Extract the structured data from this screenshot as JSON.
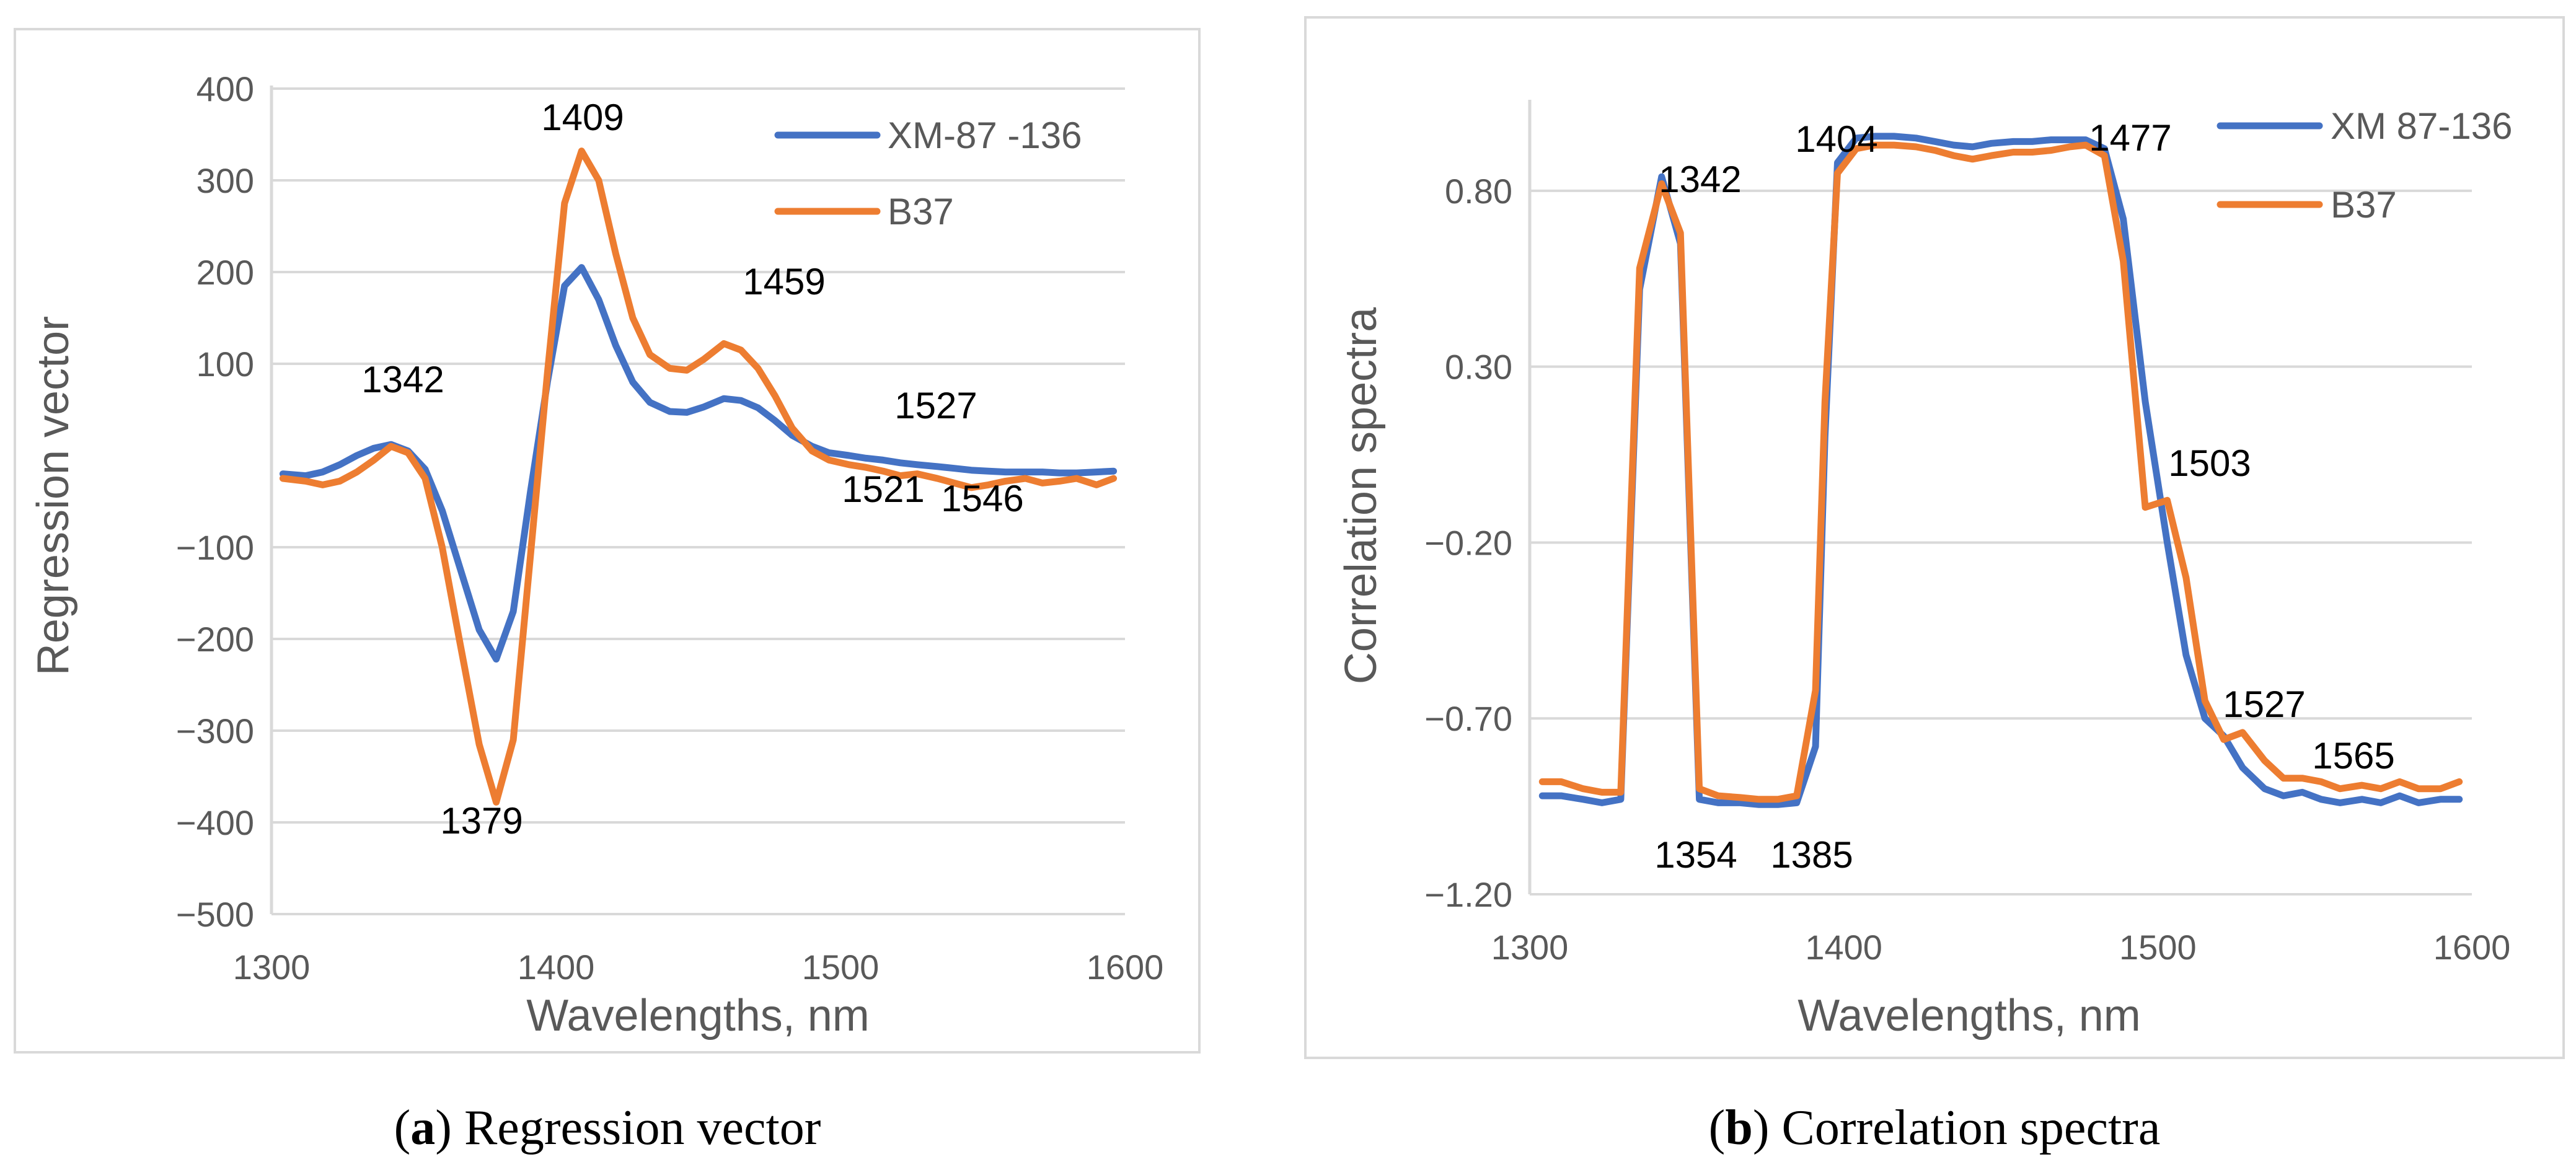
{
  "colors": {
    "series1": "#4472C4",
    "series2": "#ED7D31",
    "grid": "#d9d9d9",
    "text": "#595959"
  },
  "captions": [
    {
      "label": "a",
      "text": "Regression vector"
    },
    {
      "label": "b",
      "text": "Correlation spectra"
    }
  ],
  "chart_data": [
    {
      "type": "line",
      "title": "",
      "xlabel": "Wavelengths, nm",
      "ylabel": "Regression vector",
      "xlim": [
        1300,
        1600
      ],
      "ylim": [
        -500,
        400
      ],
      "x_ticks": [
        1300,
        1400,
        1500,
        1600
      ],
      "y_ticks": [
        400,
        300,
        200,
        100,
        -100,
        -200,
        -300,
        -400,
        -500
      ],
      "y_tick_labels": [
        "400",
        "300",
        "200",
        "100",
        "−100",
        "−200",
        "−300",
        "−400",
        "−500"
      ],
      "grid": true,
      "legend_position": "top-right",
      "x": [
        1304,
        1312,
        1318,
        1324,
        1330,
        1336,
        1342,
        1348,
        1354,
        1360,
        1366,
        1373,
        1379,
        1385,
        1391,
        1397,
        1403,
        1409,
        1415,
        1421,
        1427,
        1433,
        1440,
        1446,
        1452,
        1459,
        1465,
        1471,
        1477,
        1483,
        1490,
        1496,
        1503,
        1509,
        1515,
        1521,
        1527,
        1534,
        1540,
        1546,
        1552,
        1558,
        1565,
        1571,
        1577,
        1583,
        1590,
        1596
      ],
      "series": [
        {
          "name": "XM-87 -136",
          "values": [
            -20,
            -22,
            -18,
            -10,
            0,
            8,
            12,
            5,
            -15,
            -60,
            -120,
            -190,
            -222,
            -170,
            -40,
            80,
            185,
            205,
            170,
            120,
            80,
            58,
            48,
            47,
            53,
            62,
            60,
            52,
            38,
            22,
            10,
            3,
            0,
            -3,
            -5,
            -8,
            -10,
            -12,
            -14,
            -16,
            -17,
            -18,
            -18,
            -18,
            -19,
            -19,
            -18,
            -17
          ]
        },
        {
          "name": "B37",
          "values": [
            -25,
            -28,
            -32,
            -28,
            -18,
            -5,
            10,
            3,
            -25,
            -100,
            -200,
            -315,
            -378,
            -310,
            -110,
            90,
            275,
            332,
            300,
            220,
            150,
            110,
            95,
            93,
            105,
            122,
            115,
            95,
            65,
            30,
            5,
            -5,
            -10,
            -13,
            -17,
            -22,
            -20,
            -25,
            -30,
            -35,
            -32,
            -28,
            -25,
            -30,
            -28,
            -25,
            -32,
            -25
          ]
        }
      ],
      "annotations": [
        {
          "text": "1409"
        },
        {
          "text": "1342"
        },
        {
          "text": "1459"
        },
        {
          "text": "1527"
        },
        {
          "text": "1521"
        },
        {
          "text": "1546"
        },
        {
          "text": "1379"
        }
      ]
    },
    {
      "type": "line",
      "title": "",
      "xlabel": "Wavelengths, nm",
      "ylabel": "Correlation spectra",
      "xlim": [
        1300,
        1600
      ],
      "ylim": [
        -1.2,
        1.05
      ],
      "x_ticks": [
        1300,
        1400,
        1500,
        1600
      ],
      "y_ticks": [
        0.8,
        0.3,
        -0.2,
        -0.7,
        -1.2
      ],
      "y_tick_labels": [
        "0.80",
        "0.30",
        "−0.20",
        "−0.70",
        "−1.20"
      ],
      "grid": true,
      "legend_position": "top-right",
      "x": [
        1304,
        1310,
        1317,
        1323,
        1329,
        1335,
        1342,
        1348,
        1354,
        1360,
        1367,
        1373,
        1379,
        1385,
        1391,
        1394,
        1398,
        1404,
        1410,
        1416,
        1423,
        1429,
        1435,
        1441,
        1447,
        1454,
        1460,
        1466,
        1472,
        1477,
        1483,
        1489,
        1496,
        1503,
        1509,
        1515,
        1521,
        1527,
        1534,
        1540,
        1546,
        1552,
        1558,
        1565,
        1571,
        1577,
        1583,
        1590,
        1596
      ],
      "series": [
        {
          "name": "XM 87-136",
          "values": [
            -0.92,
            -0.92,
            -0.93,
            -0.94,
            -0.93,
            0.52,
            0.84,
            0.65,
            -0.93,
            -0.94,
            -0.94,
            -0.945,
            -0.945,
            -0.94,
            -0.78,
            0.1,
            0.88,
            0.95,
            0.955,
            0.955,
            0.95,
            0.94,
            0.93,
            0.925,
            0.935,
            0.94,
            0.94,
            0.945,
            0.945,
            0.945,
            0.92,
            0.72,
            0.2,
            -0.2,
            -0.52,
            -0.7,
            -0.75,
            -0.84,
            -0.9,
            -0.92,
            -0.91,
            -0.93,
            -0.94,
            -0.93,
            -0.94,
            -0.92,
            -0.94,
            -0.93,
            -0.93
          ]
        },
        {
          "name": "B37",
          "values": [
            -0.88,
            -0.88,
            -0.9,
            -0.91,
            -0.91,
            0.58,
            0.82,
            0.68,
            -0.9,
            -0.92,
            -0.925,
            -0.93,
            -0.93,
            -0.92,
            -0.62,
            0.2,
            0.85,
            0.92,
            0.93,
            0.93,
            0.925,
            0.915,
            0.9,
            0.89,
            0.9,
            0.91,
            0.91,
            0.915,
            0.925,
            0.93,
            0.9,
            0.6,
            -0.1,
            -0.08,
            -0.3,
            -0.65,
            -0.76,
            -0.74,
            -0.82,
            -0.87,
            -0.87,
            -0.88,
            -0.9,
            -0.89,
            -0.9,
            -0.88,
            -0.9,
            -0.9,
            -0.88
          ]
        }
      ],
      "annotations": [
        {
          "text": "1342"
        },
        {
          "text": "1404"
        },
        {
          "text": "1477"
        },
        {
          "text": "1503"
        },
        {
          "text": "1527"
        },
        {
          "text": "1565"
        },
        {
          "text": "1354"
        },
        {
          "text": "1385"
        }
      ]
    }
  ]
}
